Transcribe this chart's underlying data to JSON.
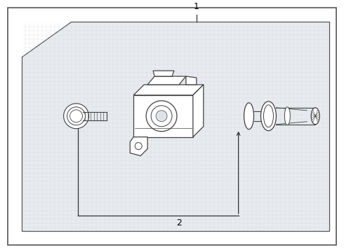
{
  "bg_color": "#ffffff",
  "line_color": "#404040",
  "text_color": "#000000",
  "grid_color": "#d0d4d8",
  "label1": "1",
  "label2": "2",
  "figsize": [
    4.9,
    3.6
  ],
  "dpi": 100,
  "inner_bg": "#e8ecf0"
}
